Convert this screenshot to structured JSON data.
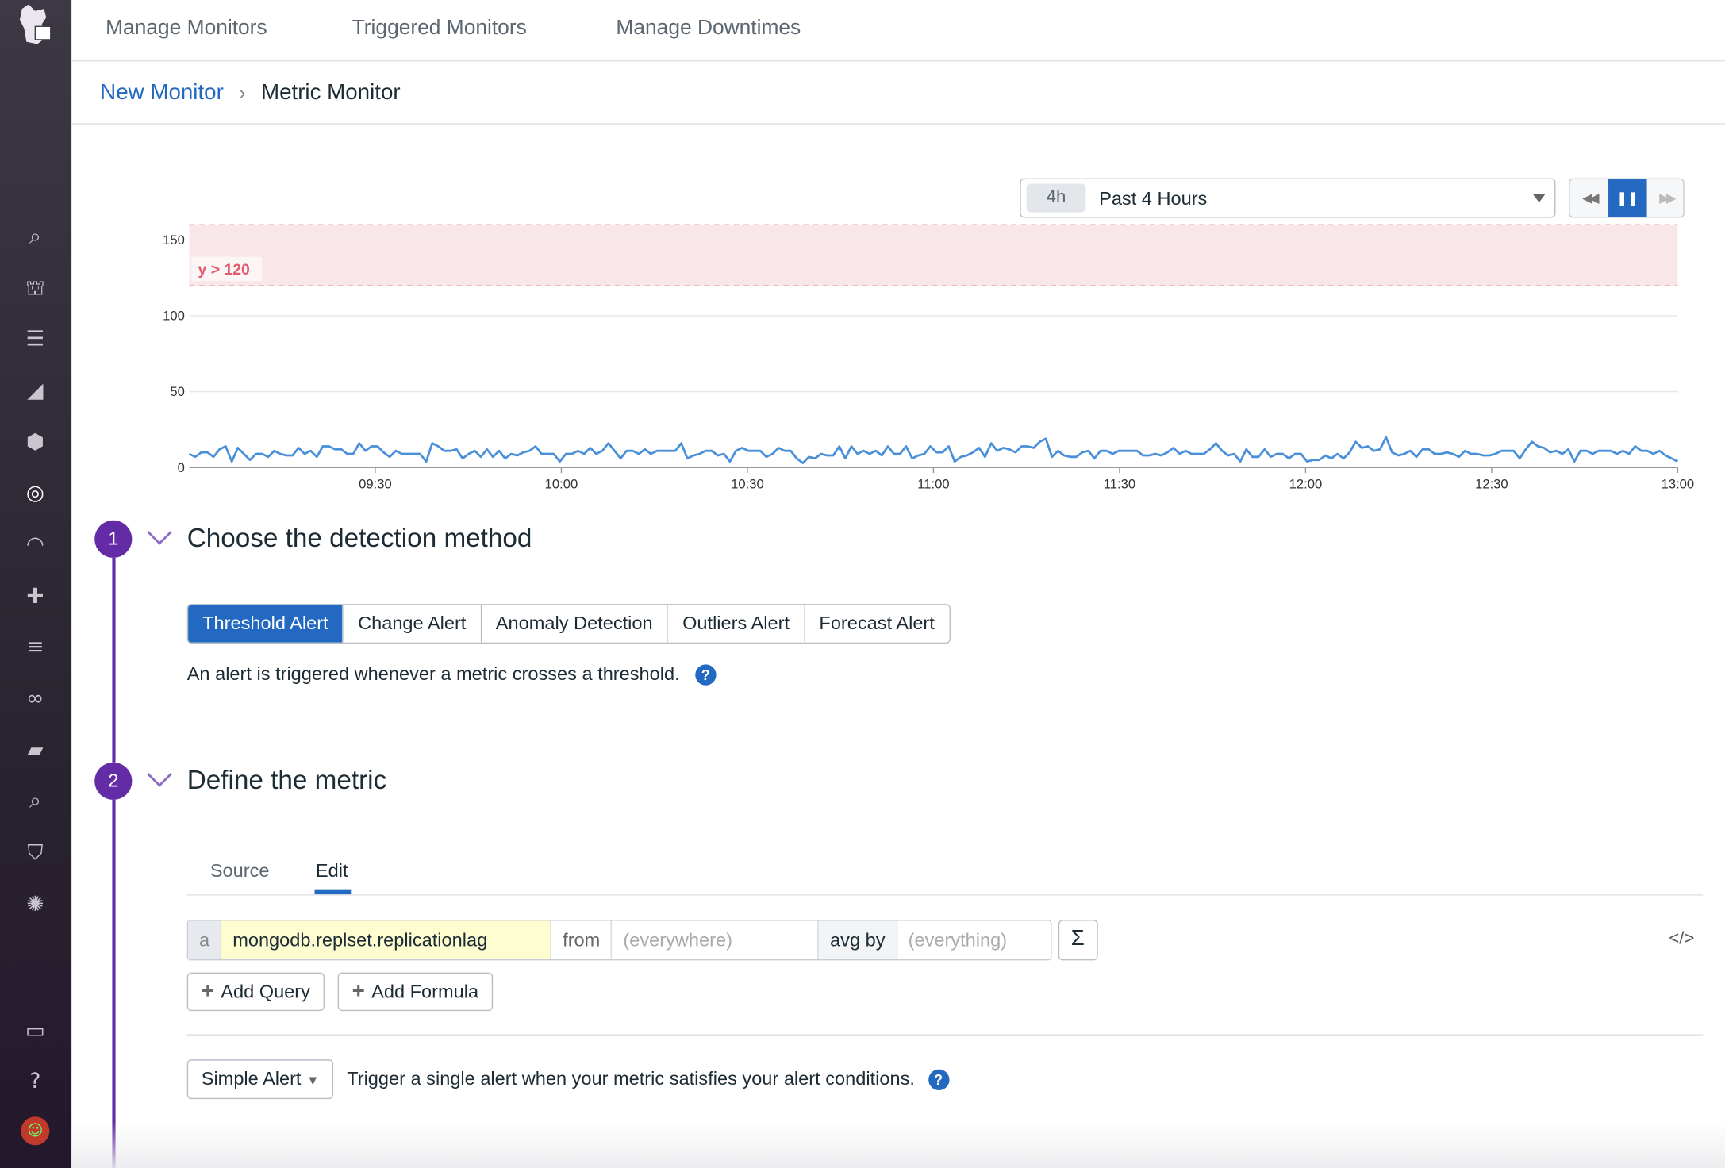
{
  "nav": {
    "items": [
      "Manage Monitors",
      "Triggered Monitors",
      "Manage Downtimes"
    ]
  },
  "breadcrumb": {
    "parent": "New Monitor",
    "separator": "›",
    "current": "Metric Monitor"
  },
  "timepicker": {
    "chip": "4h",
    "label": "Past 4 Hours"
  },
  "colors": {
    "accent": "#2469c1",
    "step": "#632ca6",
    "series": "#4a90d9",
    "threshold": "#e05b6b",
    "threshold_fill": "#f8e6e8"
  },
  "sidebar_icons": [
    "search-icon",
    "binoculars-icon",
    "list-icon",
    "chart-icon",
    "hexagons-icon",
    "monitor-target-icon",
    "gauge-icon",
    "puzzle-icon",
    "filter-icon",
    "link-icon",
    "notebook-icon",
    "search-list-icon",
    "shield-icon",
    "gear-cluster-icon",
    "chat-icon",
    "help-icon",
    "avatar"
  ],
  "chart_data": {
    "type": "line",
    "x_start": "09:00",
    "x_end": "13:00",
    "xticks": [
      "09:30",
      "10:00",
      "10:30",
      "11:00",
      "11:30",
      "12:00",
      "12:30",
      "13:00"
    ],
    "yticks": [
      "0",
      "50",
      "100",
      "150"
    ],
    "ylim": [
      0,
      160
    ],
    "grid": true,
    "threshold": {
      "label": "y > 120",
      "value": 120
    },
    "series": [
      {
        "values": [
          9,
          7,
          10,
          10,
          7,
          12,
          14,
          4,
          13,
          9,
          5,
          9,
          9,
          7,
          11,
          9,
          8,
          8,
          13,
          9,
          11,
          7,
          14,
          14,
          12,
          12,
          9,
          9,
          16,
          11,
          14,
          14,
          10,
          7,
          11,
          9,
          9,
          9,
          9,
          4,
          16,
          14,
          11,
          11,
          12,
          6,
          9,
          11,
          7,
          12,
          7,
          11,
          6,
          9,
          8,
          10,
          11,
          14,
          9,
          9,
          9,
          4,
          9,
          9,
          11,
          9,
          13,
          9,
          11,
          16,
          11,
          6,
          11,
          11,
          9,
          12,
          9,
          11,
          11,
          11,
          11,
          16,
          6,
          8,
          9,
          11,
          11,
          8,
          9,
          4,
          11,
          13,
          11,
          11,
          11,
          7,
          9,
          13,
          11,
          11,
          6,
          3,
          7,
          6,
          9,
          8,
          8,
          14,
          6,
          14,
          9,
          11,
          9,
          11,
          8,
          14,
          9,
          9,
          14,
          6,
          8,
          9,
          14,
          10,
          10,
          14,
          4,
          7,
          8,
          10,
          13,
          7,
          16,
          11,
          13,
          12,
          10,
          14,
          14,
          13,
          17,
          19,
          7,
          11,
          8,
          7,
          7,
          10,
          11,
          6,
          11,
          11,
          9,
          11,
          11,
          11,
          11,
          8,
          8,
          9,
          8,
          10,
          13,
          9,
          11,
          9,
          9,
          9,
          12,
          16,
          11,
          8,
          9,
          4,
          12,
          7,
          7,
          12,
          7,
          9,
          9,
          6,
          9,
          9,
          4,
          5,
          5,
          8,
          6,
          9,
          6,
          10,
          17,
          13,
          14,
          11,
          12,
          20,
          10,
          8,
          9,
          11,
          7,
          12,
          12,
          9,
          9,
          10,
          9,
          7,
          11,
          9,
          9,
          8,
          8,
          9,
          11,
          11,
          11,
          6,
          12,
          17,
          14,
          13,
          10,
          11,
          9,
          12,
          4,
          11,
          11,
          9,
          11,
          11,
          11,
          9,
          11,
          9,
          14,
          11,
          11,
          9,
          11,
          8,
          6,
          4
        ]
      }
    ]
  },
  "step1": {
    "number": "1",
    "title": "Choose the detection method",
    "methods": [
      "Threshold Alert",
      "Change Alert",
      "Anomaly Detection",
      "Outliers Alert",
      "Forecast Alert"
    ],
    "description": "An alert is triggered whenever a metric crosses a threshold.",
    "help": "?"
  },
  "step2": {
    "number": "2",
    "title": "Define the metric",
    "tabs": [
      "Source",
      "Edit"
    ],
    "query": {
      "letter": "a",
      "metric": "mongodb.replset.replicationlag",
      "from_label": "from",
      "from_placeholder": "(everywhere)",
      "avg_label": "avg by",
      "avg_placeholder": "(everything)",
      "sigma": "Σ",
      "code": "</>"
    },
    "add_query": "Add Query",
    "add_formula": "Add Formula",
    "alert_type": "Simple Alert",
    "alert_desc": "Trigger a single alert when your metric satisfies your alert conditions.",
    "help": "?"
  }
}
